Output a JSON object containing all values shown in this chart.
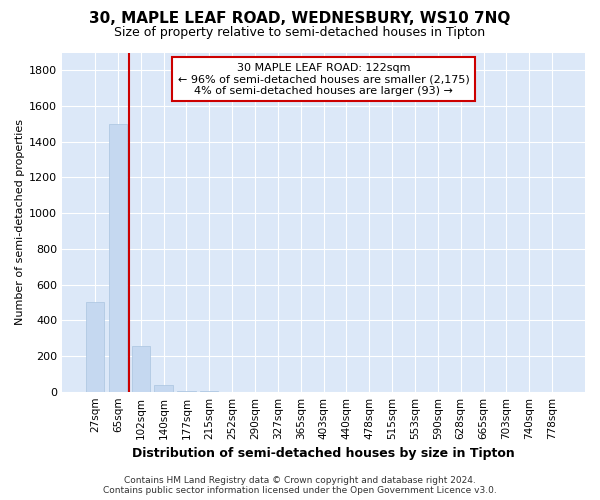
{
  "title": "30, MAPLE LEAF ROAD, WEDNESBURY, WS10 7NQ",
  "subtitle": "Size of property relative to semi-detached houses in Tipton",
  "xlabel": "Distribution of semi-detached houses by size in Tipton",
  "ylabel": "Number of semi-detached properties",
  "categories": [
    "27sqm",
    "65sqm",
    "102sqm",
    "140sqm",
    "177sqm",
    "215sqm",
    "252sqm",
    "290sqm",
    "327sqm",
    "365sqm",
    "403sqm",
    "440sqm",
    "478sqm",
    "515sqm",
    "553sqm",
    "590sqm",
    "628sqm",
    "665sqm",
    "703sqm",
    "740sqm",
    "778sqm"
  ],
  "values": [
    500,
    1500,
    255,
    35,
    5,
    2,
    1,
    0,
    0,
    0,
    0,
    0,
    0,
    0,
    0,
    0,
    0,
    0,
    0,
    0,
    0
  ],
  "bar_color": "#c5d8f0",
  "bar_edgecolor": "#aac4e0",
  "redline_x": 1.5,
  "redline_color": "#cc0000",
  "ann_line1": "30 MAPLE LEAF ROAD: 122sqm",
  "ann_line2": "← 96% of semi-detached houses are smaller (2,175)",
  "ann_line3": "4% of semi-detached houses are larger (93) →",
  "ann_box_edge": "#cc0000",
  "ann_box_face": "#ffffff",
  "ylim": [
    0,
    1900
  ],
  "yticks": [
    0,
    200,
    400,
    600,
    800,
    1000,
    1200,
    1400,
    1600,
    1800
  ],
  "plot_bg": "#dce8f8",
  "fig_bg": "#ffffff",
  "grid_color": "#ffffff",
  "footer": "Contains HM Land Registry data © Crown copyright and database right 2024.\nContains public sector information licensed under the Open Government Licence v3.0."
}
